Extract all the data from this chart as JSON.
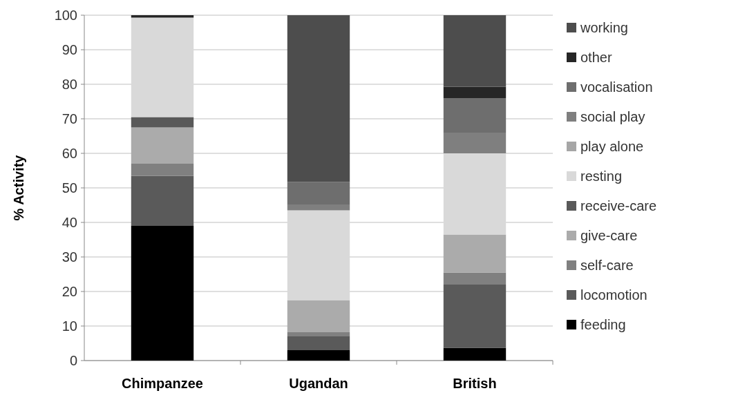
{
  "chart_data": {
    "type": "bar",
    "stacked": true,
    "ylabel": "% Activity",
    "categories": [
      "Chimpanzee",
      "Ugandan",
      "British"
    ],
    "ylim": [
      0,
      100
    ],
    "yticks": [
      0,
      10,
      20,
      30,
      40,
      50,
      60,
      70,
      80,
      90,
      100
    ],
    "grid": "y",
    "legend": "right",
    "series": [
      {
        "name": "feeding",
        "color": "#000000",
        "values": [
          39,
          3,
          3.7
        ]
      },
      {
        "name": "locomotion",
        "color": "#5a5a5a",
        "values": [
          14.5,
          4,
          18.3
        ]
      },
      {
        "name": "self-care",
        "color": "#808080",
        "values": [
          3.5,
          1.2,
          3.5
        ]
      },
      {
        "name": "give-care",
        "color": "#ababab",
        "values": [
          10.5,
          9.3,
          11
        ]
      },
      {
        "name": "receive-care",
        "color": "#595959",
        "values": [
          3,
          0,
          0
        ]
      },
      {
        "name": "resting",
        "color": "#d9d9d9",
        "values": [
          28.8,
          26,
          23.5
        ]
      },
      {
        "name": "play alone",
        "color": "#a6a6a6",
        "values": [
          0,
          0,
          0
        ]
      },
      {
        "name": "social play",
        "color": "#7f7f7f",
        "values": [
          0,
          1.7,
          6
        ]
      },
      {
        "name": "vocalisation",
        "color": "#6e6e6e",
        "values": [
          0,
          6.5,
          10
        ]
      },
      {
        "name": "other",
        "color": "#262626",
        "values": [
          0.7,
          0,
          3.3
        ]
      },
      {
        "name": "working",
        "color": "#4d4d4d",
        "values": [
          0,
          48.3,
          20.7
        ]
      }
    ]
  }
}
